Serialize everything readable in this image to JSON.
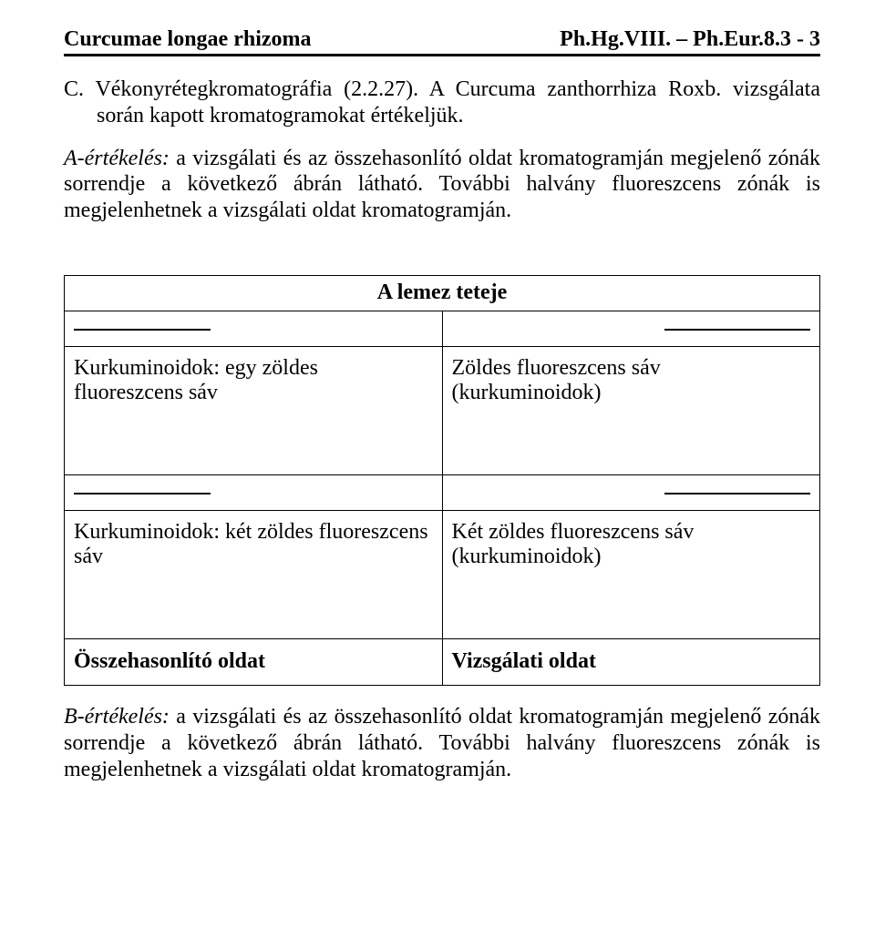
{
  "header": {
    "left": "Curcumae longae rhizoma",
    "right": "Ph.Hg.VIII. – Ph.Eur.8.3 - 3"
  },
  "section_c": {
    "label": "C.",
    "line1": " Vékonyrétegkromatográfia (2.2.27). A Curcuma zanthorrhiza Roxb. vizsgálata során kapott kromatogramokat értékeljük."
  },
  "a_eval": {
    "label": "A-értékelés:",
    "text": " a vizsgálati és az összehasonlító oldat kromatogramján megjelenő zónák sorrendje a következő ábrán látható. További halvány fluoreszcens zónák is megjelenhetnek a vizsgálati oldat kromatogramján."
  },
  "tlc": {
    "top": "A lemez teteje",
    "row1_left": "Kurkuminoidok: egy zöldes fluoreszcens sáv",
    "row1_right": "Zöldes fluoreszcens sáv (kurkuminoidok)",
    "row2_left": "Kurkuminoidok: két zöldes fluoreszcens sáv",
    "row2_right": "Két zöldes fluoreszcens sáv (kurkuminoidok)",
    "footer_left": "Összehasonlító oldat",
    "footer_right": "Vizsgálati oldat"
  },
  "b_eval": {
    "label": "B-értékelés:",
    "text": " a vizsgálati és az összehasonlító oldat kromatogramján megjelenő zónák sorrendje a következő ábrán látható. További halvány fluoreszcens zónák is megjelenhetnek a vizsgálati oldat kromatogramján."
  }
}
